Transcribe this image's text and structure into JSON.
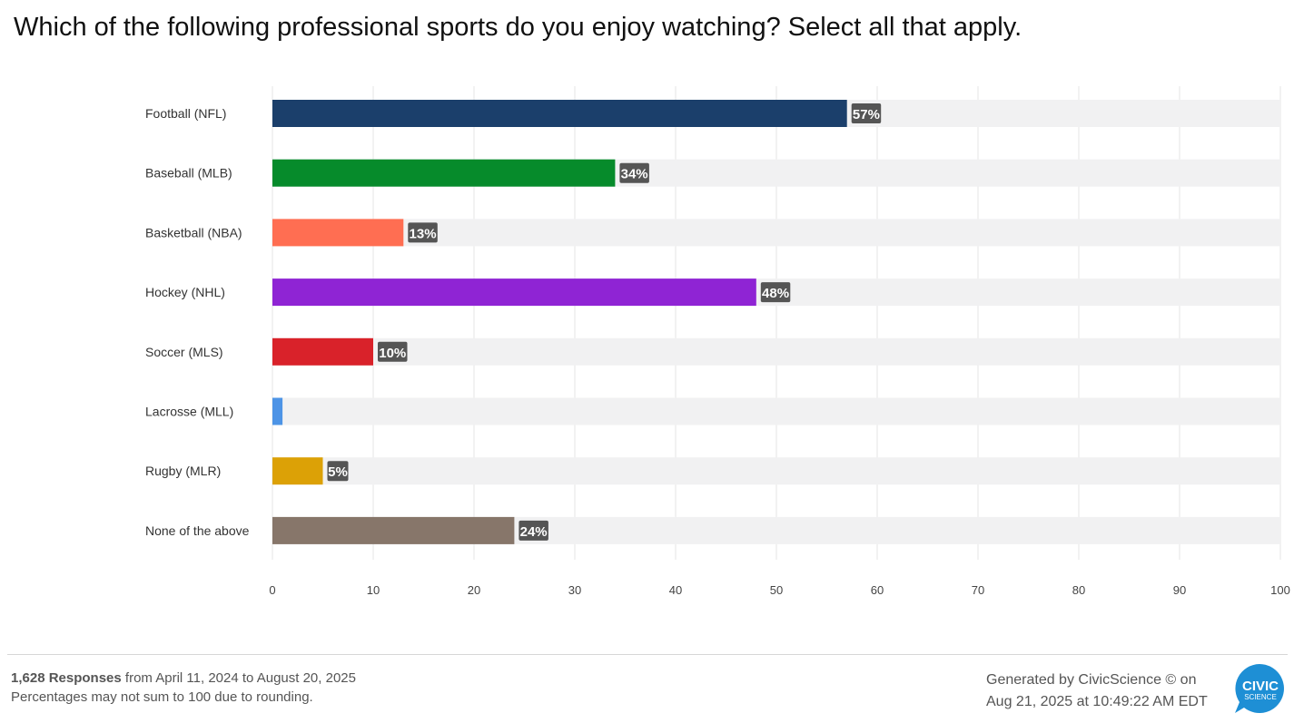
{
  "title": "Which of the following professional sports do you enjoy watching? Select all that apply.",
  "chart_data": {
    "type": "bar",
    "orientation": "horizontal",
    "title": "Which of the following professional sports do you enjoy watching? Select all that apply.",
    "categories": [
      "Football (NFL)",
      "Baseball (MLB)",
      "Basketball (NBA)",
      "Hockey (NHL)",
      "Soccer (MLS)",
      "Lacrosse (MLL)",
      "Rugby (MLR)",
      "None of the above"
    ],
    "values": [
      57,
      34,
      13,
      48,
      10,
      1,
      5,
      24
    ],
    "data_labels": [
      "57%",
      "34%",
      "13%",
      "48%",
      "10%",
      "",
      "5%",
      "24%"
    ],
    "colors": [
      "#1b3f6b",
      "#068b2b",
      "#ff6e52",
      "#8f24d4",
      "#d9222a",
      "#4d94e6",
      "#dca106",
      "#87766a"
    ],
    "track_color": "#f1f1f2",
    "xlim": [
      0,
      100
    ],
    "x_ticks": [
      "0",
      "10",
      "20",
      "30",
      "40",
      "50",
      "60",
      "70",
      "80",
      "90",
      "100"
    ],
    "grid": true,
    "legend": "none"
  },
  "footer": {
    "responses_bold": "1,628 Responses",
    "responses_rest": " from April 11, 2024 to August 20, 2025",
    "note": "Percentages may not sum to 100 due to rounding.",
    "generated_line1": "Generated by CivicScience © on",
    "generated_line2": "Aug 21, 2025 at 10:49:22 AM EDT"
  },
  "logo": {
    "text_main": "CIVIC",
    "text_sub": "SCIENCE",
    "color": "#1e8fd5"
  }
}
